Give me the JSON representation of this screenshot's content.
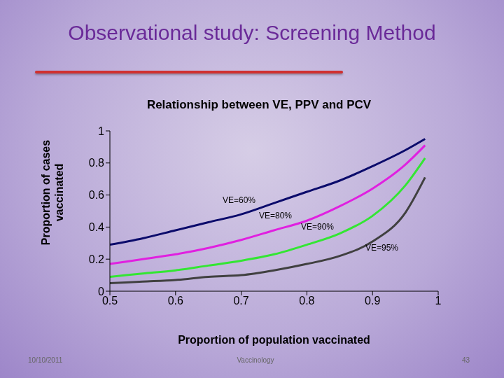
{
  "chart_data": {
    "type": "line",
    "heading": "Observational study: Screening Method",
    "title": "Relationship between VE, PPV and PCV",
    "x_label": "Proportion of population vaccinated",
    "y_label": "Proportion of cases vaccinated",
    "x": [
      0.5,
      0.55,
      0.6,
      0.65,
      0.7,
      0.75,
      0.8,
      0.85,
      0.9,
      0.95,
      0.98
    ],
    "series": [
      {
        "name": "VE=60%",
        "color": "#0b0b6b",
        "values": [
          0.29,
          0.33,
          0.38,
          0.43,
          0.48,
          0.55,
          0.62,
          0.69,
          0.78,
          0.88,
          0.95
        ]
      },
      {
        "name": "VE=80%",
        "color": "#e020e0",
        "values": [
          0.17,
          0.2,
          0.23,
          0.27,
          0.32,
          0.38,
          0.44,
          0.53,
          0.64,
          0.79,
          0.91
        ]
      },
      {
        "name": "VE=90%",
        "color": "#33e633",
        "values": [
          0.09,
          0.11,
          0.13,
          0.16,
          0.19,
          0.23,
          0.29,
          0.36,
          0.47,
          0.66,
          0.83
        ]
      },
      {
        "name": "VE=95%",
        "color": "#404040",
        "values": [
          0.05,
          0.06,
          0.07,
          0.09,
          0.1,
          0.13,
          0.17,
          0.22,
          0.31,
          0.49,
          0.71
        ]
      }
    ],
    "xlim": [
      0.5,
      1
    ],
    "xticks": [
      0.5,
      0.6,
      0.7,
      0.8,
      0.9,
      1
    ],
    "ylim": [
      0,
      1
    ],
    "yticks": [
      0,
      0.2,
      0.4,
      0.6,
      0.8,
      1
    ],
    "grid": false,
    "footer": {
      "date": "10/10/2011",
      "text": "Vaccinology",
      "page": "43"
    }
  }
}
